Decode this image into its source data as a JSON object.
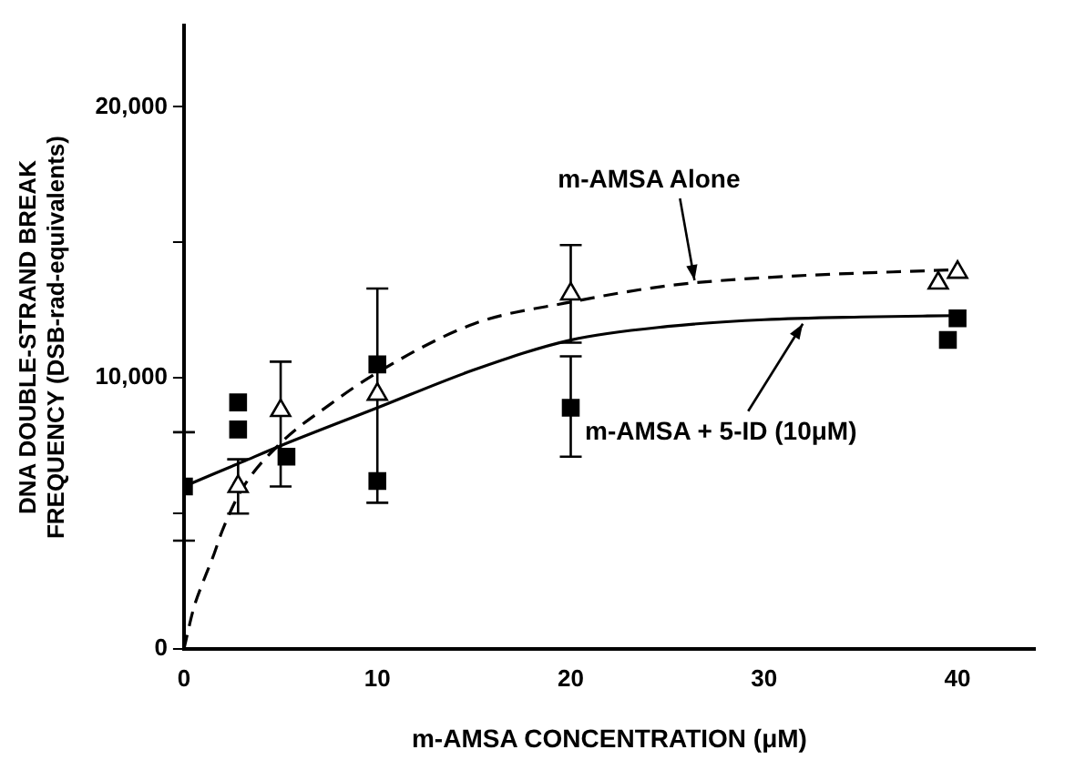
{
  "chart_data": {
    "type": "scatter",
    "xlabel": "m-AMSA CONCENTRATION (μM)",
    "ylabel": "DNA DOUBLE-STRAND BREAK\nFREQUENCY (DSB-rad-equivalents)",
    "xlim": [
      0,
      44
    ],
    "xticks": [
      0,
      10,
      20,
      30,
      40
    ],
    "ylim": [
      0,
      23000
    ],
    "yticks": [
      {
        "value": 0,
        "label": "0"
      },
      {
        "value": 5000,
        "label": null
      },
      {
        "value": 10000,
        "label": "10,000"
      },
      {
        "value": 15000,
        "label": null
      },
      {
        "value": 20000,
        "label": "20,000"
      }
    ],
    "grid": false,
    "legend": false,
    "series": [
      {
        "type": "line",
        "color": "#000000",
        "line_style": "solid",
        "marker": "none",
        "x": [
          0,
          3,
          5,
          10,
          15,
          20,
          25,
          30,
          35,
          40
        ],
        "values": [
          6000,
          6900,
          7500,
          8900,
          10300,
          11400,
          11900,
          12150,
          12250,
          12300
        ]
      },
      {
        "type": "line",
        "color": "#000000",
        "line_style": "dashed",
        "marker": "none",
        "x": [
          0,
          0.5,
          1,
          1.5,
          2,
          3,
          5,
          7.5,
          10,
          15,
          20,
          25,
          30,
          40
        ],
        "values": [
          0,
          1500,
          2500,
          3400,
          4400,
          5900,
          7600,
          9000,
          10200,
          12000,
          12800,
          13400,
          13700,
          14000
        ]
      },
      {
        "type": "scatter",
        "color": "#000000",
        "marker": "square",
        "x": [
          0,
          2.8,
          2.8,
          5.3,
          10,
          10,
          20,
          39.5,
          40
        ],
        "values": [
          6000,
          9100,
          8100,
          7100,
          10500,
          6200,
          8900,
          11400,
          12200
        ],
        "errors": [
          2000,
          null,
          null,
          null,
          null,
          null,
          [
            7100,
            10800
          ],
          null,
          null
        ]
      },
      {
        "type": "scatter",
        "color": "#ffffff",
        "marker": "triangle",
        "x": [
          2.8,
          5,
          10,
          20,
          39,
          40
        ],
        "values": [
          6000,
          8800,
          9400,
          13100,
          13500,
          13900
        ],
        "errors": [
          [
            5000,
            7000
          ],
          [
            6000,
            10600
          ],
          [
            5400,
            13300
          ],
          1800,
          null,
          null
        ]
      }
    ],
    "annotations": [
      {
        "text": "m-AMSA Alone",
        "x": 26.4,
        "y": 13600
      },
      {
        "text": "m-AMSA + 5-ID (10μM)",
        "x": 32,
        "y": 12000
      }
    ]
  }
}
